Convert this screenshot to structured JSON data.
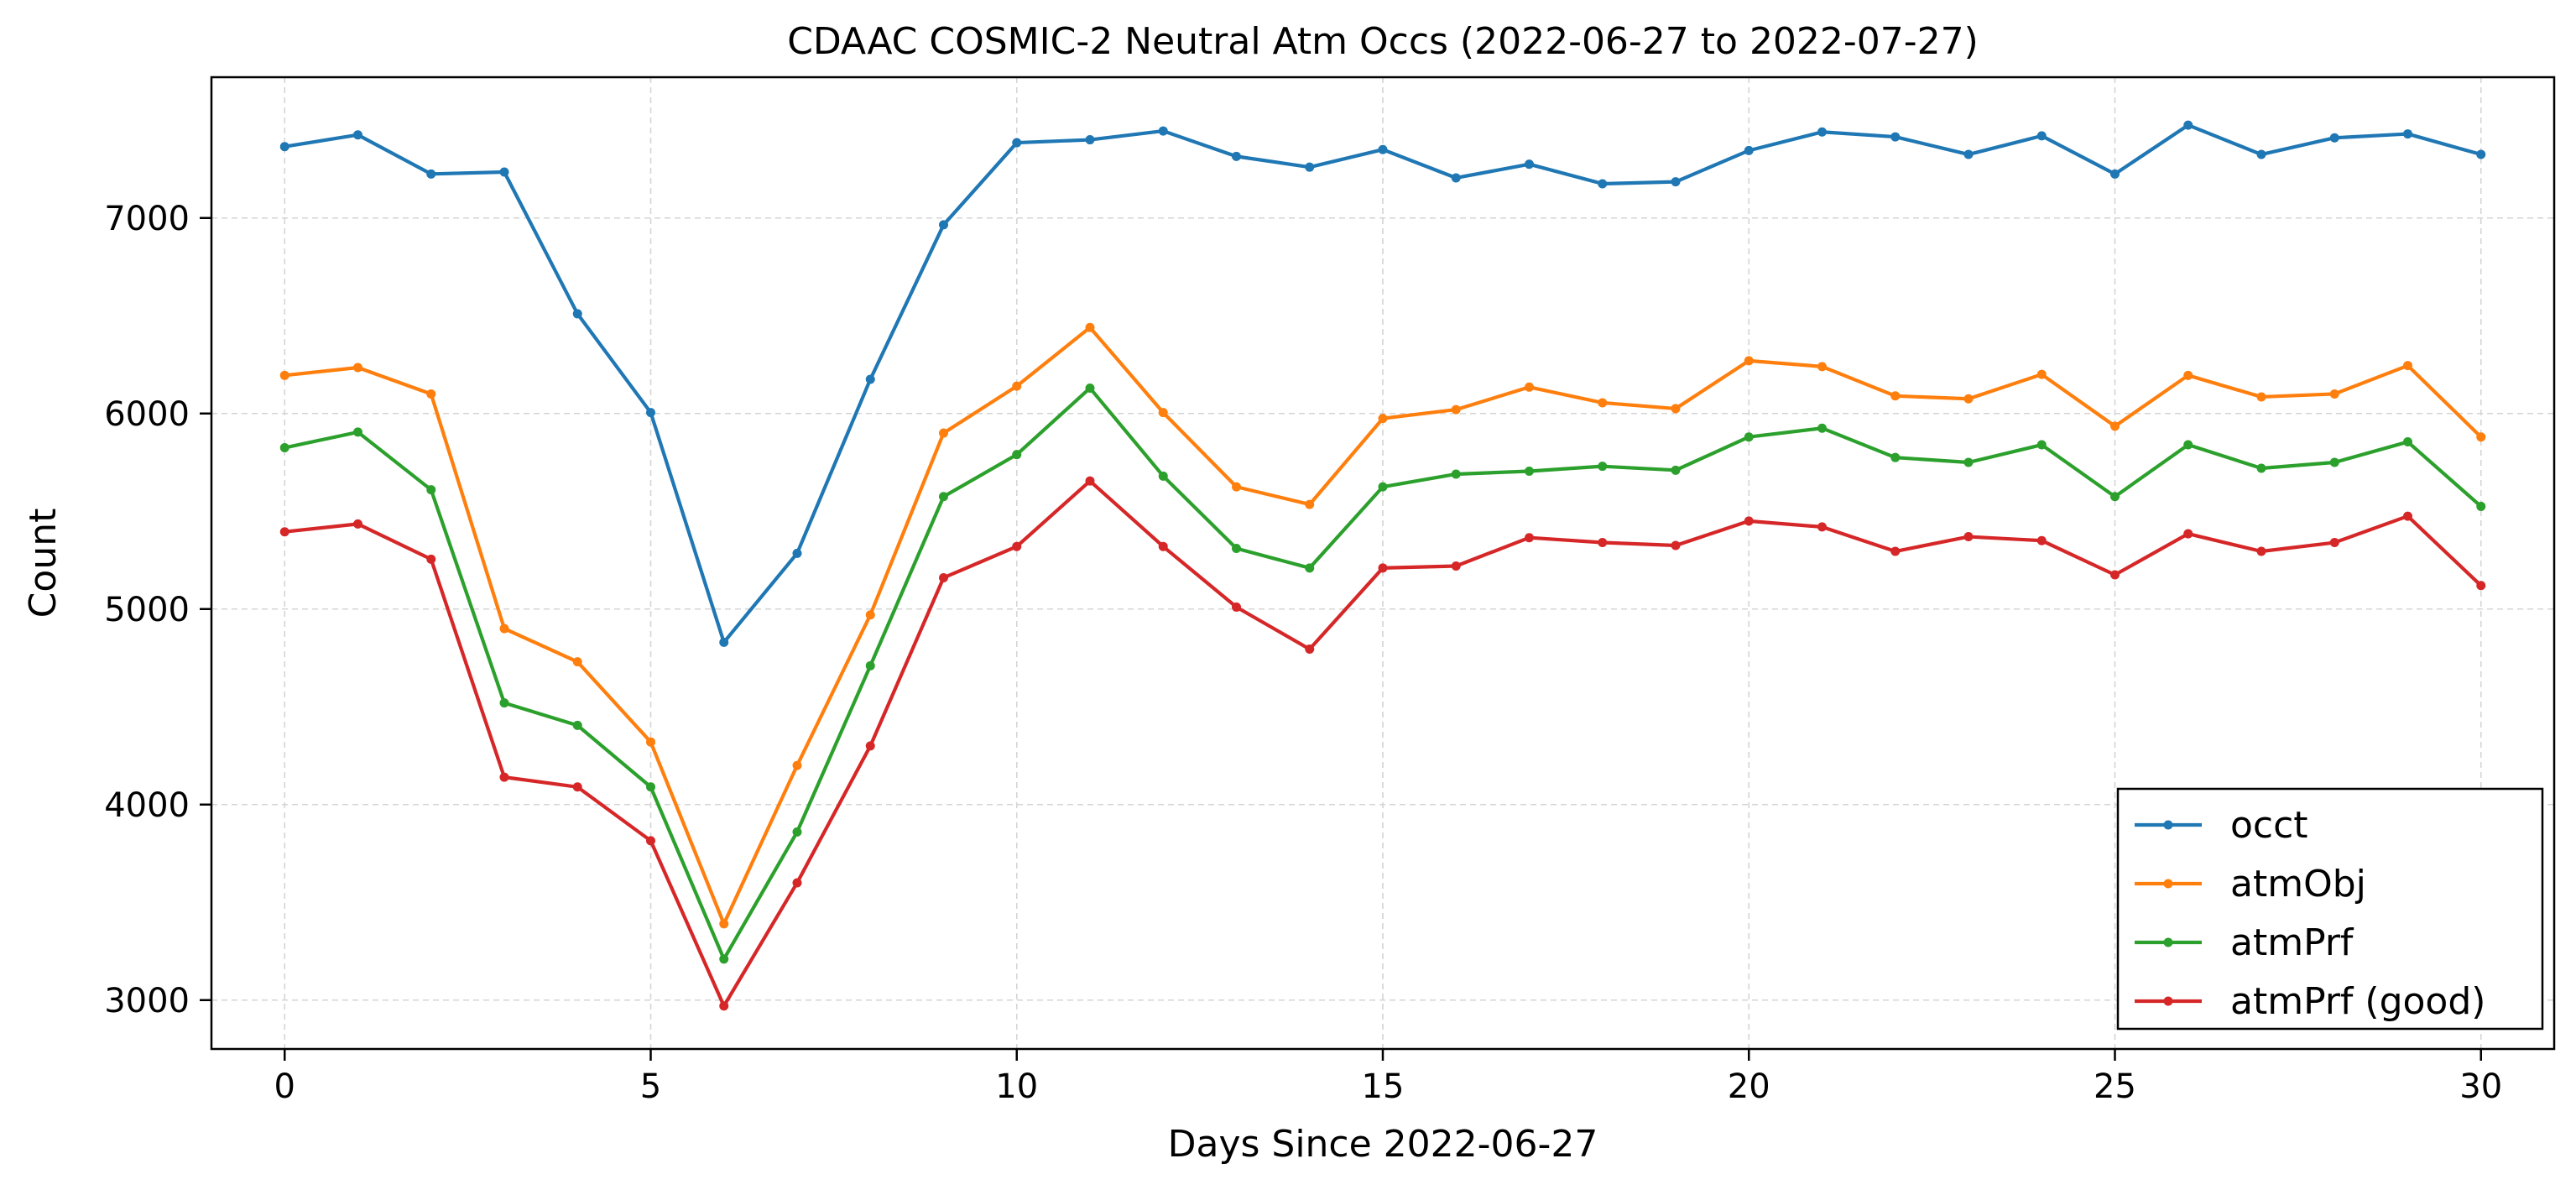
{
  "chart_data": {
    "type": "line",
    "title": "CDAAC COSMIC-2 Neutral Atm Occs (2022-06-27 to 2022-07-27)",
    "xlabel": "Days Since 2022-06-27",
    "ylabel": "Count",
    "xlim": [
      -1,
      31
    ],
    "ylim": [
      2750,
      7720
    ],
    "x_ticks": [
      0,
      5,
      10,
      15,
      20,
      25,
      30
    ],
    "y_ticks": [
      3000,
      4000,
      5000,
      6000,
      7000
    ],
    "grid": true,
    "legend_position": "bottom-right",
    "x": [
      0,
      1,
      2,
      3,
      4,
      5,
      6,
      7,
      8,
      9,
      10,
      11,
      12,
      13,
      14,
      15,
      16,
      17,
      18,
      19,
      20,
      21,
      22,
      23,
      24,
      25,
      26,
      27,
      28,
      29,
      30
    ],
    "series": [
      {
        "name": "occt",
        "color": "#1f77b4",
        "values": [
          7365,
          7425,
          7225,
          7235,
          6510,
          6005,
          4830,
          5285,
          6175,
          6965,
          7385,
          7400,
          7445,
          7315,
          7260,
          7350,
          7205,
          7275,
          7175,
          7185,
          7345,
          7440,
          7415,
          7325,
          7420,
          7225,
          7475,
          7325,
          7410,
          7430,
          7325
        ]
      },
      {
        "name": "atmObj",
        "color": "#ff7f0e",
        "values": [
          6195,
          6235,
          6100,
          4900,
          4730,
          4320,
          3390,
          4200,
          4970,
          5900,
          6140,
          6440,
          6005,
          5625,
          5535,
          5975,
          6020,
          6135,
          6055,
          6025,
          6270,
          6240,
          6090,
          6075,
          6200,
          5935,
          6195,
          6085,
          6100,
          6245,
          5880
        ]
      },
      {
        "name": "atmPrf",
        "color": "#2ca02c",
        "values": [
          5825,
          5905,
          5610,
          4520,
          4405,
          4090,
          3210,
          3860,
          4710,
          5575,
          5790,
          6130,
          5680,
          5310,
          5210,
          5625,
          5690,
          5705,
          5730,
          5710,
          5880,
          5925,
          5775,
          5750,
          5840,
          5575,
          5840,
          5720,
          5750,
          5855,
          5525
        ]
      },
      {
        "name": "atmPrf (good)",
        "color": "#d62728",
        "values": [
          5395,
          5435,
          5255,
          4140,
          4090,
          3815,
          2970,
          3600,
          4300,
          5160,
          5320,
          5655,
          5320,
          5010,
          4795,
          5210,
          5220,
          5365,
          5340,
          5325,
          5450,
          5420,
          5295,
          5370,
          5350,
          5175,
          5385,
          5295,
          5340,
          5475,
          5120
        ]
      }
    ]
  }
}
